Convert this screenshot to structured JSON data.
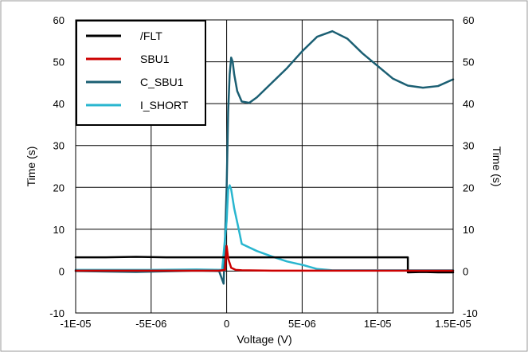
{
  "chart_data": {
    "type": "line",
    "title": "",
    "xlabel": "Voltage (V)",
    "ylabel_left": "Time (s)",
    "ylabel_right": "Time (s)",
    "xlim": [
      -1e-05,
      1.5e-05
    ],
    "ylim": [
      -10,
      60
    ],
    "x_ticks": [
      -1e-05,
      -5e-06,
      0,
      5e-06,
      1e-05,
      1.5e-05
    ],
    "x_tick_labels": [
      "-1E-05",
      "-5E-06",
      "0",
      "5E-06",
      "1E-05",
      "1.5E-05"
    ],
    "y_ticks": [
      -10,
      0,
      10,
      20,
      30,
      40,
      50,
      60
    ],
    "y_tick_labels": [
      "-10",
      "0",
      "10",
      "20",
      "30",
      "40",
      "50",
      "60"
    ],
    "grid": true,
    "legend_position": "top-left",
    "series": [
      {
        "name": "/FLT",
        "color": "#000000",
        "x": [
          -1e-05,
          -8e-06,
          -6e-06,
          -4e-06,
          -2e-06,
          -5e-07,
          0,
          2e-06,
          4e-06,
          6e-06,
          8e-06,
          1e-05,
          1.2e-05,
          1.2e-05,
          1.3e-05,
          1.4e-05,
          1.5e-05
        ],
        "y": [
          3.3,
          3.3,
          3.4,
          3.3,
          3.3,
          3.3,
          3.3,
          3.3,
          3.3,
          3.3,
          3.3,
          3.3,
          3.3,
          -0.3,
          -0.2,
          -0.3,
          -0.3
        ]
      },
      {
        "name": "SBU1",
        "color": "#cc0000",
        "x": [
          -1e-05,
          -5e-06,
          -5e-07,
          -1e-07,
          0,
          1e-07,
          3e-07,
          6e-07,
          1e-06,
          3e-06,
          5e-06,
          1e-05,
          1.5e-05
        ],
        "y": [
          0.1,
          0.1,
          0.1,
          0.3,
          6.0,
          3.0,
          0.8,
          0.3,
          0.2,
          0.1,
          0.1,
          0.1,
          0.1
        ]
      },
      {
        "name": "C_SBU1",
        "color": "#1b5f73",
        "x": [
          -1e-05,
          -6e-06,
          -2e-06,
          -5e-07,
          -2e-07,
          0,
          1e-07,
          2e-07,
          3e-07,
          4e-07,
          5e-07,
          7e-07,
          1e-06,
          1.5e-06,
          2e-06,
          3e-06,
          4e-06,
          5e-06,
          6e-06,
          7e-06,
          8e-06,
          9e-06,
          1e-05,
          1.1e-05,
          1.2e-05,
          1.3e-05,
          1.4e-05,
          1.5e-05
        ],
        "y": [
          0.0,
          -0.2,
          0.1,
          0.0,
          -3.0,
          20.0,
          38.0,
          47.0,
          51.0,
          50.0,
          47.0,
          43.0,
          40.5,
          40.2,
          41.5,
          45.0,
          48.5,
          52.5,
          56.0,
          57.3,
          55.5,
          52.0,
          49.0,
          46.0,
          44.3,
          43.8,
          44.2,
          45.8
        ]
      },
      {
        "name": "I_SHORT",
        "color": "#29b6cf",
        "x": [
          -1e-05,
          -5e-06,
          -2e-06,
          -3e-07,
          0,
          1e-07,
          2e-07,
          3e-07,
          5e-07,
          8e-07,
          1e-06,
          2e-06,
          3e-06,
          4e-06,
          5e-06,
          6e-06,
          7e-06,
          1e-05,
          1.5e-05
        ],
        "y": [
          0.3,
          0.3,
          0.4,
          0.3,
          12.0,
          19.5,
          20.5,
          19.5,
          15.0,
          10.0,
          6.5,
          4.8,
          3.5,
          2.3,
          1.5,
          0.5,
          0.2,
          0.2,
          0.2
        ]
      }
    ]
  }
}
